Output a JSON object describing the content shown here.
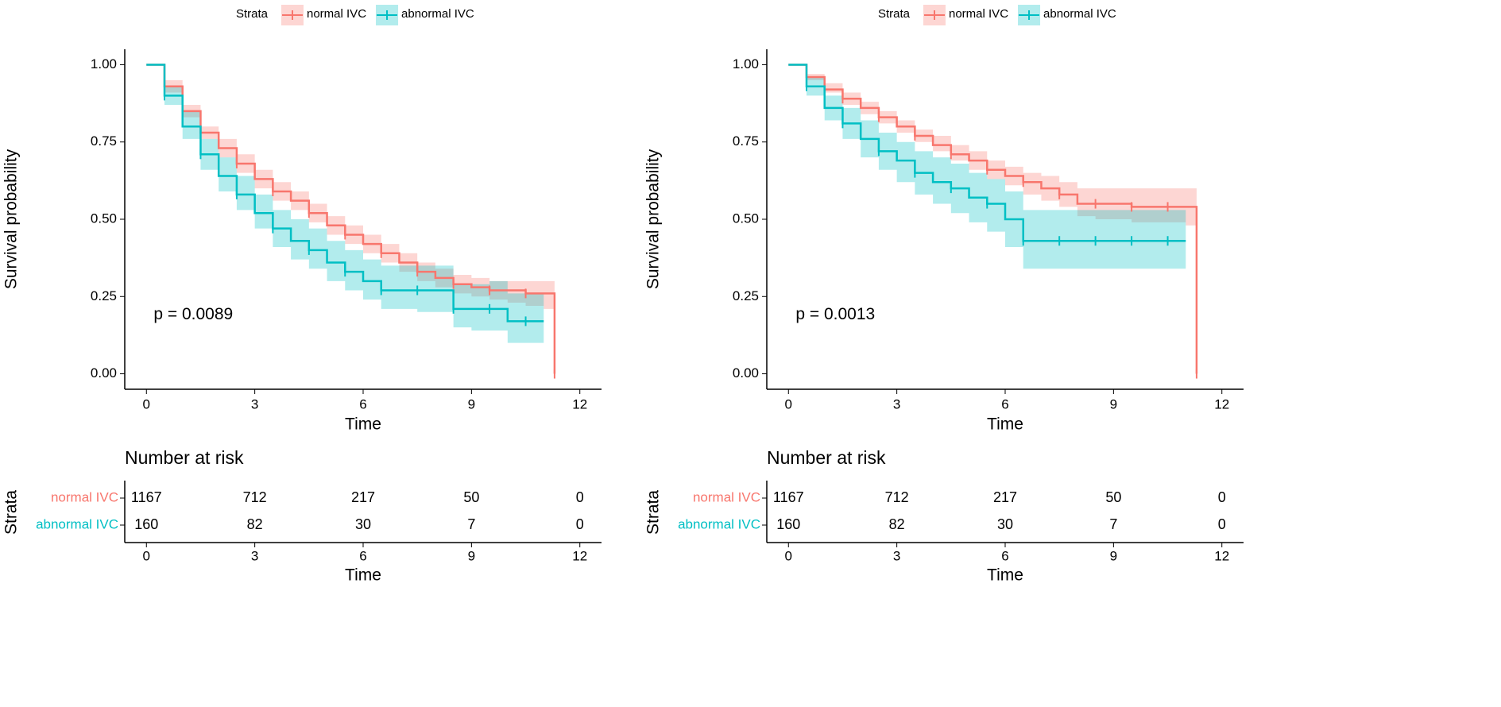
{
  "chart_data": [
    {
      "type": "survival",
      "ylabel": "Survival probability",
      "xlabel": "Time",
      "legend_title": "Strata",
      "annotation": "p = 0.0089",
      "xlim": [
        -0.6,
        12.6
      ],
      "xticks": [
        0,
        3,
        6,
        9,
        12
      ],
      "ylim": [
        -0.05,
        1.05
      ],
      "yticks": [
        {
          "value": 0,
          "label": "0.00"
        },
        {
          "value": 0.25,
          "label": "0.25"
        },
        {
          "value": 0.5,
          "label": "0.50"
        },
        {
          "value": 0.75,
          "label": "0.75"
        },
        {
          "value": 1,
          "label": "1.00"
        }
      ],
      "series": [
        {
          "name": "normal IVC",
          "color": "#f8766d",
          "x": [
            0,
            0.5,
            1,
            1.5,
            2,
            2.5,
            3,
            3.5,
            4,
            4.5,
            5,
            5.5,
            6,
            6.5,
            7,
            7.5,
            8,
            8.5,
            9,
            9.5,
            10,
            10.5,
            11,
            11.3
          ],
          "values": [
            1,
            0.93,
            0.85,
            0.78,
            0.73,
            0.68,
            0.63,
            0.59,
            0.56,
            0.52,
            0.48,
            0.45,
            0.42,
            0.39,
            0.36,
            0.33,
            0.31,
            0.29,
            0.28,
            0.27,
            0.27,
            0.26,
            0.26,
            0
          ],
          "lower": [
            1,
            0.91,
            0.83,
            0.76,
            0.7,
            0.65,
            0.6,
            0.56,
            0.53,
            0.49,
            0.45,
            0.42,
            0.39,
            0.36,
            0.33,
            0.3,
            0.28,
            0.26,
            0.25,
            0.24,
            0.23,
            0.22,
            0.21,
            null
          ],
          "upper": [
            1,
            0.95,
            0.87,
            0.8,
            0.76,
            0.71,
            0.66,
            0.62,
            0.59,
            0.55,
            0.51,
            0.48,
            0.45,
            0.42,
            0.39,
            0.36,
            0.34,
            0.32,
            0.31,
            0.3,
            0.3,
            0.3,
            0.3,
            null
          ]
        },
        {
          "name": "abnormal IVC",
          "color": "#00bfc4",
          "x": [
            0,
            0.5,
            1,
            1.5,
            2,
            2.5,
            3,
            3.5,
            4,
            4.5,
            5,
            5.5,
            6,
            6.5,
            7,
            7.5,
            8,
            8.5,
            9,
            9.5,
            10,
            10.5,
            11
          ],
          "values": [
            1,
            0.9,
            0.8,
            0.71,
            0.64,
            0.58,
            0.52,
            0.47,
            0.43,
            0.4,
            0.36,
            0.33,
            0.3,
            0.27,
            0.27,
            0.27,
            0.27,
            0.21,
            0.21,
            0.21,
            0.17,
            0.17,
            0.17
          ],
          "lower": [
            1,
            0.87,
            0.76,
            0.66,
            0.59,
            0.53,
            0.47,
            0.41,
            0.37,
            0.34,
            0.3,
            0.27,
            0.24,
            0.21,
            0.21,
            0.2,
            0.2,
            0.15,
            0.14,
            0.14,
            0.1,
            0.1,
            0.1
          ],
          "upper": [
            1,
            0.93,
            0.85,
            0.76,
            0.7,
            0.64,
            0.58,
            0.53,
            0.5,
            0.47,
            0.43,
            0.4,
            0.37,
            0.35,
            0.35,
            0.35,
            0.35,
            0.29,
            0.29,
            0.3,
            0.26,
            0.26,
            0.26
          ]
        }
      ],
      "risk_table": {
        "title": "Number at risk",
        "strata_label": "Strata",
        "xlabel": "Time",
        "rows": [
          {
            "name": "normal IVC",
            "counts": [
              1167,
              712,
              217,
              50,
              0
            ]
          },
          {
            "name": "abnormal IVC",
            "counts": [
              160,
              82,
              30,
              7,
              0
            ]
          }
        ]
      }
    },
    {
      "type": "survival",
      "ylabel": "Survival probability",
      "xlabel": "Time",
      "legend_title": "Strata",
      "annotation": "p = 0.0013",
      "xlim": [
        -0.6,
        12.6
      ],
      "xticks": [
        0,
        3,
        6,
        9,
        12
      ],
      "ylim": [
        -0.05,
        1.05
      ],
      "yticks": [
        {
          "value": 0,
          "label": "0.00"
        },
        {
          "value": 0.25,
          "label": "0.25"
        },
        {
          "value": 0.5,
          "label": "0.50"
        },
        {
          "value": 0.75,
          "label": "0.75"
        },
        {
          "value": 1,
          "label": "1.00"
        }
      ],
      "series": [
        {
          "name": "normal IVC",
          "color": "#f8766d",
          "x": [
            0,
            0.5,
            1,
            1.5,
            2,
            2.5,
            3,
            3.5,
            4,
            4.5,
            5,
            5.5,
            6,
            6.5,
            7,
            7.5,
            8,
            8.5,
            9,
            9.5,
            10,
            10.5,
            11,
            11.3
          ],
          "values": [
            1,
            0.96,
            0.92,
            0.89,
            0.86,
            0.83,
            0.8,
            0.77,
            0.74,
            0.71,
            0.69,
            0.66,
            0.64,
            0.62,
            0.6,
            0.58,
            0.55,
            0.55,
            0.55,
            0.54,
            0.54,
            0.54,
            0.54,
            0
          ],
          "lower": [
            1,
            0.95,
            0.91,
            0.87,
            0.84,
            0.81,
            0.78,
            0.75,
            0.72,
            0.69,
            0.66,
            0.63,
            0.61,
            0.58,
            0.56,
            0.54,
            0.51,
            0.5,
            0.5,
            0.49,
            0.49,
            0.49,
            0.48,
            null
          ],
          "upper": [
            1,
            0.97,
            0.94,
            0.91,
            0.88,
            0.85,
            0.82,
            0.79,
            0.77,
            0.74,
            0.72,
            0.69,
            0.67,
            0.65,
            0.64,
            0.62,
            0.6,
            0.6,
            0.6,
            0.6,
            0.6,
            0.6,
            0.6,
            null
          ]
        },
        {
          "name": "abnormal IVC",
          "color": "#00bfc4",
          "x": [
            0,
            0.5,
            1,
            1.5,
            2,
            2.5,
            3,
            3.5,
            4,
            4.5,
            5,
            5.5,
            6,
            6.5,
            7,
            7.5,
            8,
            8.5,
            9,
            9.5,
            10,
            10.5,
            11
          ],
          "values": [
            1,
            0.93,
            0.86,
            0.81,
            0.76,
            0.72,
            0.69,
            0.65,
            0.62,
            0.6,
            0.57,
            0.55,
            0.5,
            0.43,
            0.43,
            0.43,
            0.43,
            0.43,
            0.43,
            0.43,
            0.43,
            0.43,
            0.43
          ],
          "lower": [
            1,
            0.9,
            0.82,
            0.76,
            0.7,
            0.66,
            0.62,
            0.58,
            0.55,
            0.52,
            0.49,
            0.46,
            0.41,
            0.34,
            0.34,
            0.34,
            0.34,
            0.34,
            0.34,
            0.34,
            0.34,
            0.34,
            0.34
          ],
          "upper": [
            1,
            0.96,
            0.9,
            0.86,
            0.82,
            0.78,
            0.75,
            0.72,
            0.7,
            0.68,
            0.65,
            0.63,
            0.59,
            0.53,
            0.53,
            0.53,
            0.53,
            0.53,
            0.53,
            0.53,
            0.53,
            0.53,
            0.53
          ]
        }
      ],
      "risk_table": {
        "title": "Number at risk",
        "strata_label": "Strata",
        "xlabel": "Time",
        "rows": [
          {
            "name": "normal IVC",
            "counts": [
              1167,
              712,
              217,
              50,
              0
            ]
          },
          {
            "name": "abnormal IVC",
            "counts": [
              160,
              82,
              30,
              7,
              0
            ]
          }
        ]
      }
    }
  ]
}
